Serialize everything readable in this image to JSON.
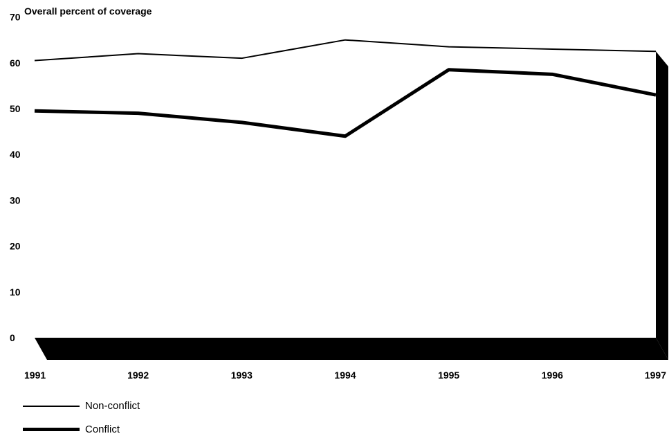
{
  "chart_data": {
    "type": "line",
    "title": "Overall percent of coverage",
    "ylabel": "",
    "xlabel": "",
    "ylim": [
      0,
      70
    ],
    "yticks": [
      0,
      10,
      20,
      30,
      40,
      50,
      60,
      70
    ],
    "categories": [
      "1991",
      "1992",
      "1993",
      "1994",
      "1995",
      "1996",
      "1997"
    ],
    "series": [
      {
        "name": "Non-conflict",
        "values": [
          60.5,
          62,
          61,
          65,
          63.5,
          63,
          62.5
        ],
        "color": "#000000"
      },
      {
        "name": "Conflict",
        "values": [
          49.5,
          49,
          47,
          44,
          58.5,
          57.5,
          53
        ],
        "color": "#000000"
      }
    ],
    "grid": false,
    "legend_position": "bottom-left"
  }
}
